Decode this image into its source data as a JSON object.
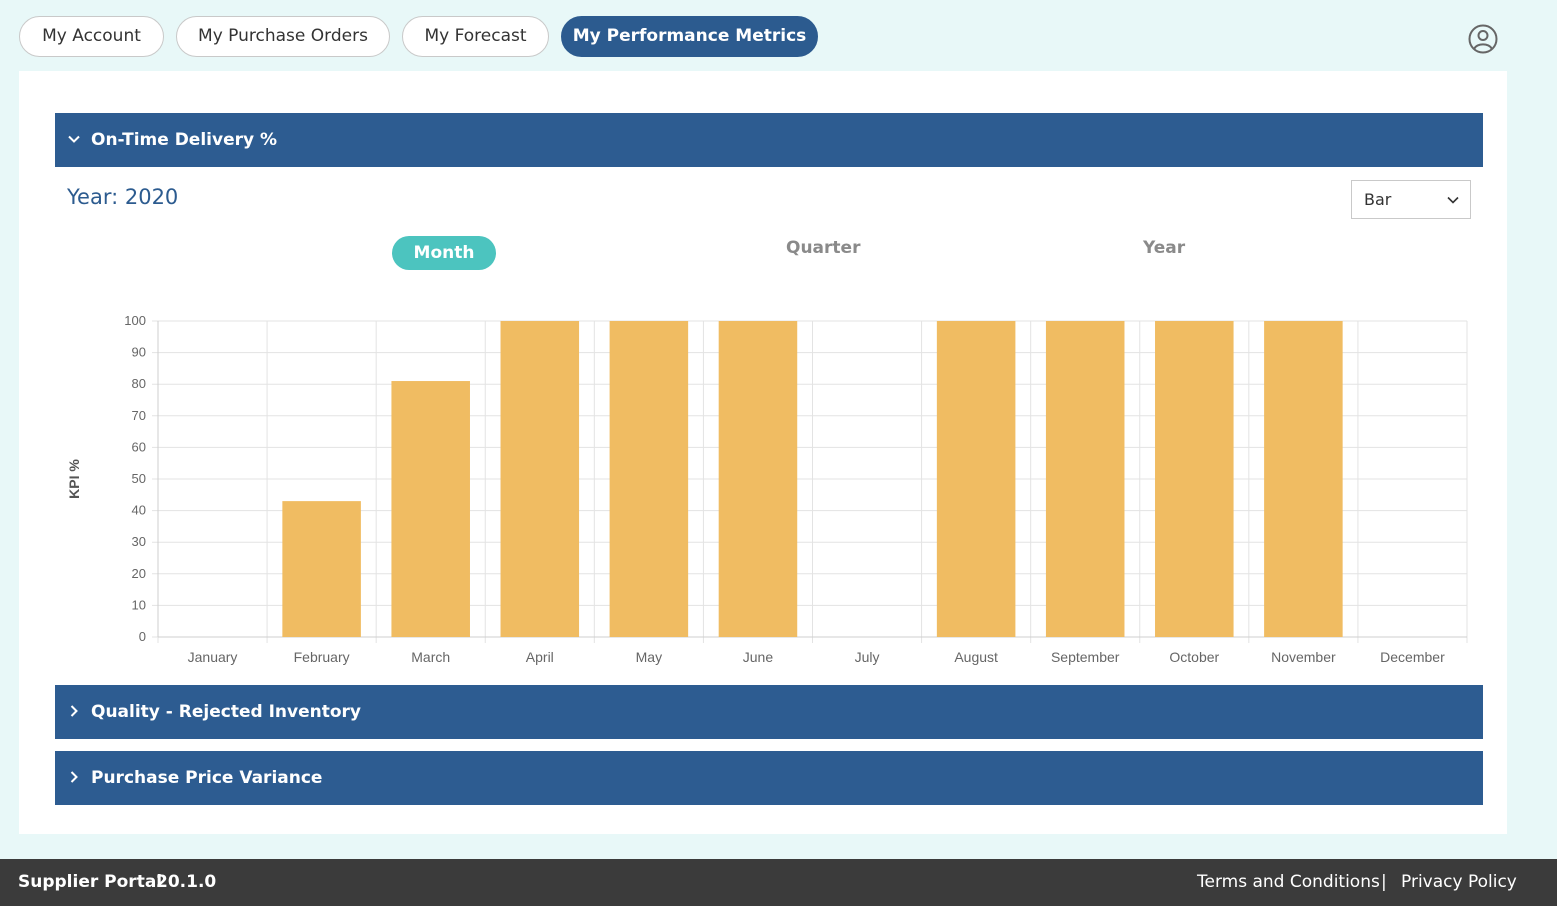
{
  "nav": {
    "tabs": [
      {
        "label": "My Account"
      },
      {
        "label": "My Purchase Orders"
      },
      {
        "label": "My Forecast"
      },
      {
        "label": "My Performance Metrics"
      }
    ],
    "active_tab": "My Performance Metrics",
    "user_icon": "user-circle-icon"
  },
  "sections": [
    {
      "title": "On-Time Delivery %",
      "expanded": true
    },
    {
      "title": "Quality - Rejected Inventory",
      "expanded": false
    },
    {
      "title": "Purchase Price Variance",
      "expanded": false
    }
  ],
  "metric": {
    "year_label": "Year: 2020",
    "chart_type_select": {
      "value": "Bar"
    },
    "periods": [
      {
        "label": "Month",
        "active": true
      },
      {
        "label": "Quarter",
        "active": false
      },
      {
        "label": "Year",
        "active": false
      }
    ]
  },
  "chart_data": {
    "type": "bar",
    "categories": [
      "January",
      "February",
      "March",
      "April",
      "May",
      "June",
      "July",
      "August",
      "September",
      "October",
      "November",
      "December"
    ],
    "values": [
      0,
      43,
      81,
      100,
      100,
      100,
      0,
      100,
      100,
      100,
      100,
      0
    ],
    "title": "",
    "xlabel": "",
    "ylabel": "KPI %",
    "ylim": [
      0,
      100
    ],
    "yticks": [
      0,
      10,
      20,
      30,
      40,
      50,
      60,
      70,
      80,
      90,
      100
    ],
    "grid": true,
    "bar_color": "#f0bc62"
  },
  "footer": {
    "brand": "Supplier Portal",
    "version": "20.1.0",
    "terms": "Terms and Conditions",
    "separator": "|",
    "privacy": "Privacy Policy"
  },
  "colors": {
    "header_blue": "#2d5c91",
    "active_tab": "#2c5b8f",
    "month_pill": "#4cc4bf",
    "page_bg": "#e8f8f8",
    "footer_bg": "#3b3b3b"
  }
}
